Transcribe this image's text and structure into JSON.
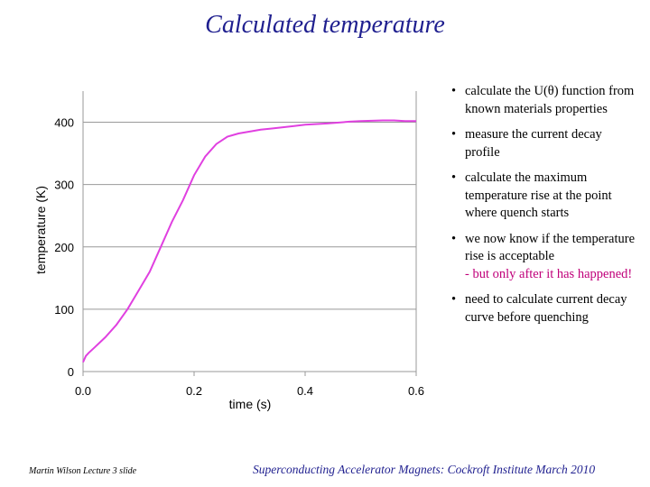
{
  "slide": {
    "title": "Calculated temperature",
    "footer_left": "Martin Wilson Lecture 3 slide",
    "footer_right": "Superconducting Accelerator Magnets:  Cockroft Institute March 2010"
  },
  "bullets": [
    {
      "text": "calculate the U(θ) function from known materials properties"
    },
    {
      "text": "measure the current decay profile"
    },
    {
      "text": "calculate the maximum temperature rise at the point where quench starts"
    },
    {
      "text": "we now know if the temperature rise is acceptable",
      "emph": "- but only after it has happened!"
    },
    {
      "text": "need to calculate current decay curve before quenching"
    }
  ],
  "chart_data": {
    "type": "line",
    "xlabel": "time (s)",
    "ylabel": "temperature (K)",
    "xlim": [
      0,
      0.6
    ],
    "ylim": [
      0,
      450
    ],
    "xticks": [
      "0.0",
      "0.2",
      "0.4",
      "0.6"
    ],
    "yticks": [
      "0",
      "100",
      "200",
      "300",
      "400"
    ],
    "grid": "horizontal",
    "line_color": "#e040e0",
    "series": [
      {
        "x": [
          0.0,
          0.005,
          0.01,
          0.02,
          0.04,
          0.06,
          0.08,
          0.1,
          0.12,
          0.14,
          0.16,
          0.18,
          0.2,
          0.22,
          0.24,
          0.26,
          0.28,
          0.3,
          0.32,
          0.34,
          0.36,
          0.38,
          0.4,
          0.44,
          0.48,
          0.5,
          0.54,
          0.56,
          0.58,
          0.6
        ],
        "y": [
          15,
          25,
          30,
          38,
          55,
          75,
          100,
          130,
          160,
          200,
          240,
          275,
          315,
          345,
          365,
          377,
          382,
          385,
          388,
          390,
          392,
          394,
          396,
          398,
          401,
          402,
          403,
          403,
          402,
          402
        ]
      }
    ]
  }
}
